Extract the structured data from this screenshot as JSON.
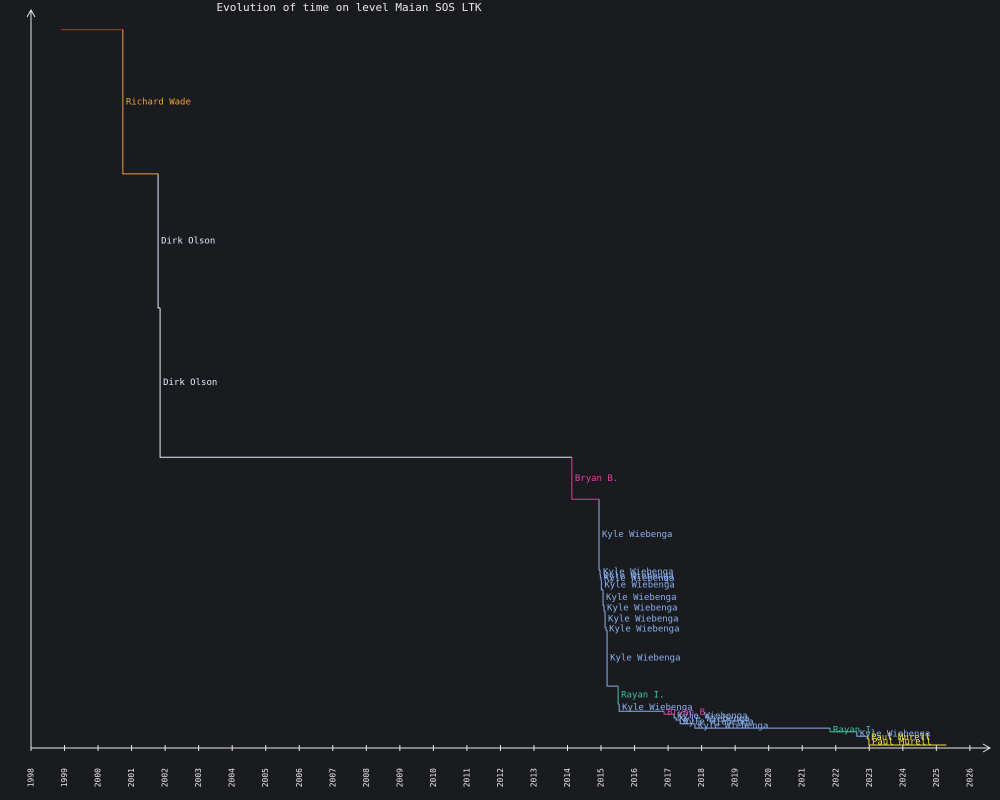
{
  "chart_data": {
    "type": "step",
    "title": "Evolution of time on level Maian SOS LTK",
    "x": [
      1998.89,
      2000.74,
      2001.79,
      2001.85,
      2014.13,
      2014.94,
      2014.97,
      2014.98,
      2015.0,
      2015.01,
      2015.06,
      2015.09,
      2015.12,
      2015.15,
      2015.18,
      2015.51,
      2015.54,
      2016.88,
      2017.18,
      2017.24,
      2017.36,
      2017.8,
      2021.83,
      2022.63,
      2022.96,
      2022.99
    ],
    "values": [
      97.6,
      78.0,
      59.8,
      39.5,
      33.8,
      24.2,
      23.6,
      23.2,
      22.8,
      21.5,
      19.4,
      18.6,
      16.4,
      16.0,
      8.4,
      6.0,
      5.0,
      4.6,
      4.1,
      3.8,
      3.3,
      2.7,
      2.2,
      1.6,
      1.2,
      0.4
    ],
    "labels": [
      null,
      "Richard Wade",
      "Dirk Olson",
      "Dirk Olson",
      "Bryan B.",
      "Kyle Wiebenga",
      "Kyle Wiebenga",
      "Kyle Wiebenga",
      "Kyle Wiebenga",
      "Kyle Wiebenga",
      "Kyle Wiebenga",
      "Kyle Wiebenga",
      "Kyle Wiebenga",
      "Kyle Wiebenga",
      "Kyle Wiebenga",
      "Rayan I.",
      "Kyle Wiebenga",
      "Bryan B.",
      "Kyle Wiebenga",
      "Kyle Wiebenga",
      "Kyle Wiebenga",
      "Kyle Wiebenga",
      "Rayan I.",
      "Kyle Wiebenga",
      "Paul Murell",
      "Paul Murell"
    ],
    "colors": [
      "#e02020",
      "#f0a040",
      "#e8e8ff",
      "#e8e8ff",
      "#e040a0",
      "#8ab0f0",
      "#8ab0f0",
      "#8ab0f0",
      "#8ab0f0",
      "#8ab0f0",
      "#8ab0f0",
      "#8ab0f0",
      "#8ab0f0",
      "#8ab0f0",
      "#8ab0f0",
      "#40c0a8",
      "#8ab0f0",
      "#e040a0",
      "#8ab0f0",
      "#8ab0f0",
      "#8ab0f0",
      "#8ab0f0",
      "#40c0a8",
      "#8ab0f0",
      "#f0e040",
      "#f0e040"
    ],
    "x_end": 2025.3,
    "xlim": [
      1998,
      2026.6
    ],
    "ylim": [
      0,
      100
    ],
    "xticks": [
      1998,
      1999,
      2000,
      2001,
      2002,
      2003,
      2004,
      2005,
      2006,
      2007,
      2008,
      2009,
      2010,
      2011,
      2012,
      2013,
      2014,
      2015,
      2016,
      2017,
      2018,
      2019,
      2020,
      2021,
      2022,
      2023,
      2024,
      2025,
      2026
    ]
  }
}
